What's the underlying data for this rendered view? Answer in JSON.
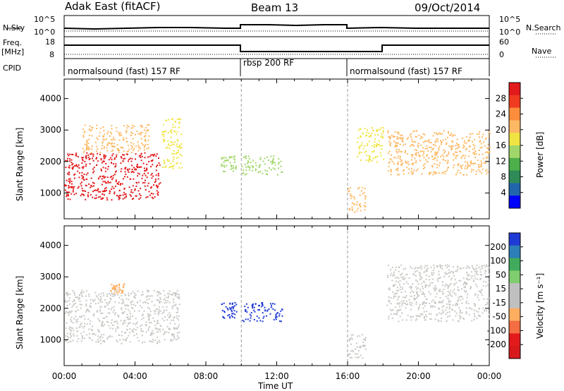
{
  "header": {
    "title": "Adak East (fitACF)",
    "beam": "Beam 13",
    "date": "09/Oct/2014"
  },
  "summary_panel": {
    "left_labels": [
      "N.Sky",
      "Freq.",
      "[MHz]",
      "CPID"
    ],
    "right_labels": [
      "N.Search",
      "Nave"
    ],
    "noise_axis_left": [
      "10^5",
      "10^0"
    ],
    "noise_axis_right": [
      "10^5",
      "10^0"
    ],
    "freq_axis": [
      "18",
      "8"
    ],
    "nave_axis": [
      "60",
      "0"
    ],
    "cpid_segments": [
      {
        "label": "normalsound (fast) 157 RF",
        "start_hour": 0,
        "end_hour": 10
      },
      {
        "label": "rbsp 200 RF",
        "start_hour": 10,
        "end_hour": 16
      },
      {
        "label": "normalsound (fast) 157 RF",
        "start_hour": 16,
        "end_hour": 24
      }
    ]
  },
  "colorbars": {
    "power": {
      "label": "Power [dB]",
      "ticks": [
        "28",
        "24",
        "20",
        "16",
        "12",
        "8",
        "4"
      ],
      "colors": [
        "#e31a1c",
        "#f03b20",
        "#fd8d3c",
        "#fdb863",
        "#f0e442",
        "#a1d76a",
        "#4daf4a",
        "#2e8b57",
        "#2166ac",
        "#0000ff"
      ]
    },
    "velocity": {
      "label": "Velocity [m s⁻¹]",
      "ticks": [
        "200",
        "100",
        "50",
        "15",
        "-15",
        "-50",
        "-100",
        "-200"
      ],
      "colors": [
        "#1f3bd6",
        "#2c7fb8",
        "#41ab5d",
        "#7fcd6e",
        "#c0c0c0",
        "#c0c0c0",
        "#fdae61",
        "#f46d43",
        "#e31a1c",
        "#d7191c"
      ]
    }
  },
  "chart_data": [
    {
      "type": "heatmap",
      "name": "power",
      "ylabel": "Slant Range [km]",
      "xlabel": "Time UT",
      "x_ticks": [
        "00:00",
        "04:00",
        "08:00",
        "12:00",
        "16:00",
        "20:00",
        "00:00"
      ],
      "y_ticks": [
        "1000",
        "2000",
        "3000",
        "4000"
      ],
      "xlim_hours": [
        0,
        24
      ],
      "ylim_km": [
        180,
        4620
      ],
      "regions": [
        {
          "t0": 0.0,
          "t1": 5.4,
          "r0": 800,
          "r1": 2300,
          "value_db": 28
        },
        {
          "t0": 1.0,
          "t1": 4.8,
          "r0": 2300,
          "r1": 3200,
          "value_db": 20
        },
        {
          "t0": 5.5,
          "t1": 6.6,
          "r0": 1800,
          "r1": 3400,
          "value_db": 16
        },
        {
          "t0": 8.8,
          "t1": 9.7,
          "r0": 1700,
          "r1": 2200,
          "value_db": 12
        },
        {
          "t0": 10.0,
          "t1": 12.3,
          "r0": 1600,
          "r1": 2200,
          "value_db": 12
        },
        {
          "t0": 16.0,
          "t1": 17.0,
          "r0": 400,
          "r1": 1200,
          "value_db": 20
        },
        {
          "t0": 16.5,
          "t1": 18.0,
          "r0": 2000,
          "r1": 3100,
          "value_db": 16
        },
        {
          "t0": 18.2,
          "t1": 24.0,
          "r0": 1600,
          "r1": 3000,
          "value_db": 20
        }
      ]
    },
    {
      "type": "heatmap",
      "name": "velocity",
      "ylabel": "Slant Range [km]",
      "xlabel": "Time UT",
      "x_ticks": [
        "00:00",
        "04:00",
        "08:00",
        "12:00",
        "16:00",
        "20:00",
        "00:00"
      ],
      "y_ticks": [
        "1000",
        "2000",
        "3000",
        "4000"
      ],
      "xlim_hours": [
        0,
        24
      ],
      "ylim_km": [
        180,
        4620
      ],
      "regions": [
        {
          "t0": 0.0,
          "t1": 6.5,
          "r0": 900,
          "r1": 2600,
          "value_ms": 0
        },
        {
          "t0": 2.6,
          "t1": 3.4,
          "r0": 2500,
          "r1": 2800,
          "value_ms": -50
        },
        {
          "t0": 8.8,
          "t1": 9.7,
          "r0": 1700,
          "r1": 2200,
          "value_ms": 200
        },
        {
          "t0": 10.0,
          "t1": 12.3,
          "r0": 1600,
          "r1": 2200,
          "value_ms": 200
        },
        {
          "t0": 16.0,
          "t1": 17.0,
          "r0": 400,
          "r1": 1200,
          "value_ms": 0
        },
        {
          "t0": 18.2,
          "t1": 24.0,
          "r0": 1600,
          "r1": 3400,
          "value_ms": 0
        }
      ]
    }
  ]
}
